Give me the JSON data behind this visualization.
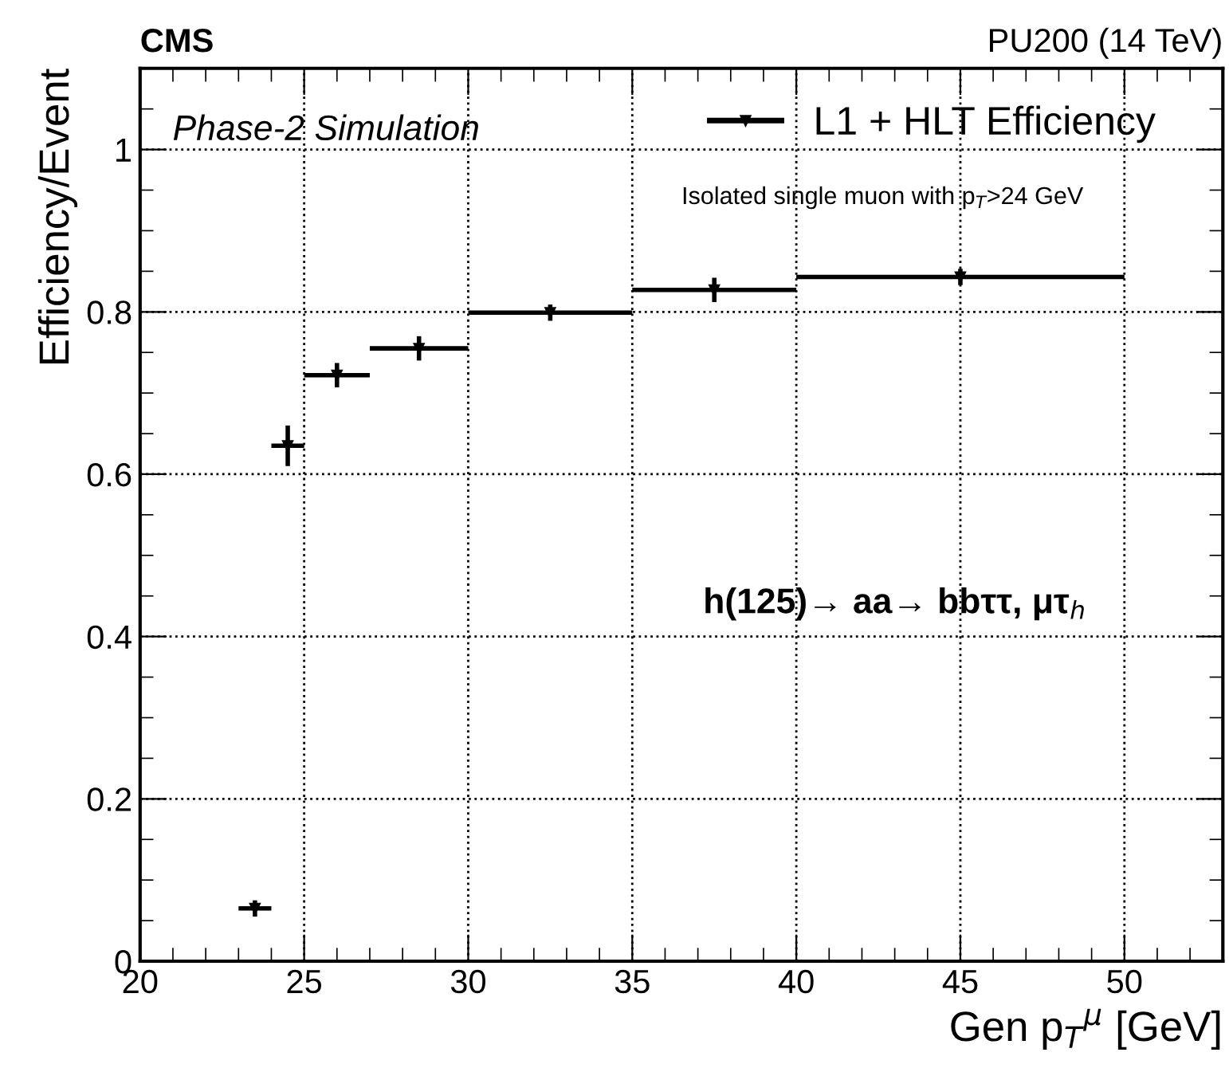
{
  "chart_data": {
    "type": "scatter",
    "title": "CMS",
    "subtitle": "PU200 (14 TeV)",
    "xlabel": "Gen p$_{T}$$^{μ}$ [GeV]",
    "ylabel": "Efficiency/Event",
    "annotations": [
      "Phase-2 Simulation",
      "Isolated single muon with p$_{T}$>24 GeV",
      "h(125)→ aa→ bbττ, μτ$_{h}$"
    ],
    "x": [
      23.5,
      24.5,
      26,
      28.5,
      32.5,
      37.5,
      45
    ],
    "series": [
      {
        "name": "L1 + HLT Efficiency",
        "color": "#000000",
        "values": [
          0.065,
          0.635,
          0.722,
          0.755,
          0.799,
          0.827,
          0.843
        ],
        "errors": [
          0.01,
          0.025,
          0.015,
          0.015,
          0.01,
          0.015,
          0.01
        ],
        "xerrors": [
          0.5,
          0.5,
          1,
          1.5,
          2.5,
          2.5,
          5
        ]
      }
    ],
    "xlim": [
      20,
      53
    ],
    "ylim": [
      0,
      1.1
    ],
    "xticks": [
      20,
      25,
      30,
      35,
      40,
      45,
      50
    ],
    "yticks": [
      0,
      0.2,
      0.4,
      0.6,
      0.8,
      1
    ],
    "grid": true,
    "legend": "top right",
    "marker": "triangle"
  }
}
